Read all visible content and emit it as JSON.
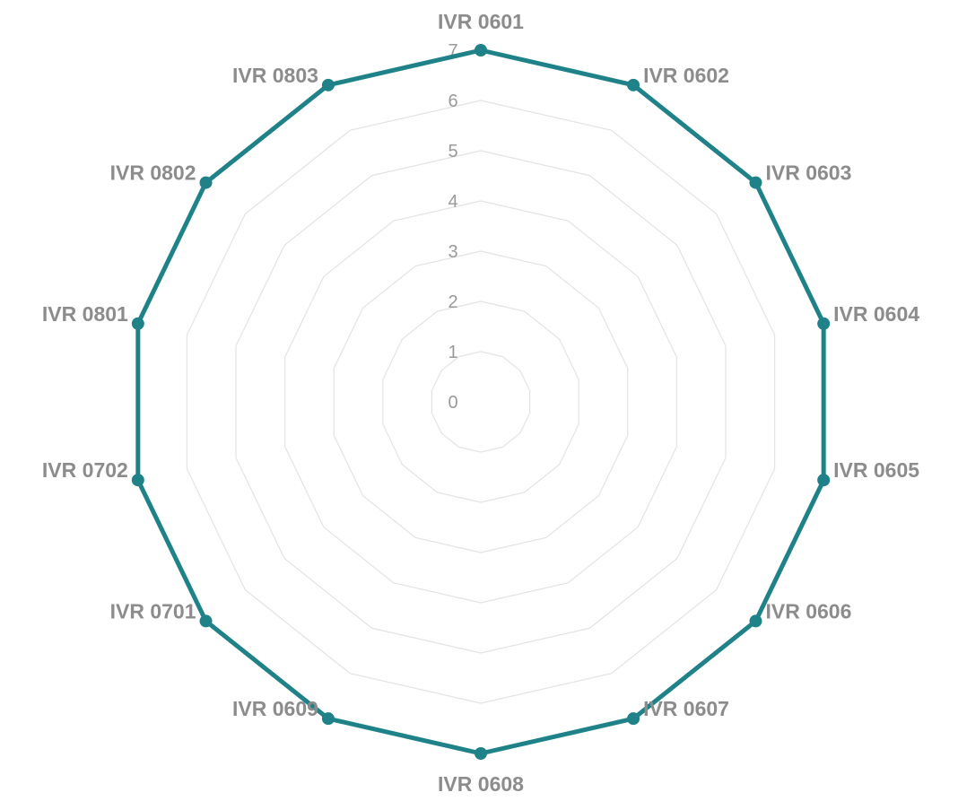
{
  "chart_data": {
    "type": "radar",
    "categories": [
      "IVR 0601",
      "IVR 0602",
      "IVR 0603",
      "IVR 0604",
      "IVR 0605",
      "IVR 0606",
      "IVR 0607",
      "IVR 0608",
      "IVR 0609",
      "IVR 0701",
      "IVR 0702",
      "IVR 0801",
      "IVR 0802",
      "IVR 0803"
    ],
    "series": [
      {
        "values": [
          7,
          7,
          7,
          7,
          7,
          7,
          7,
          7,
          7,
          7,
          7,
          7,
          7,
          7
        ],
        "color": "#1f8288"
      }
    ],
    "r_ticks": [
      "0",
      "1",
      "2",
      "3",
      "4",
      "5",
      "6",
      "7"
    ],
    "r_range": [
      0,
      7
    ],
    "grid": true,
    "legend": false
  }
}
